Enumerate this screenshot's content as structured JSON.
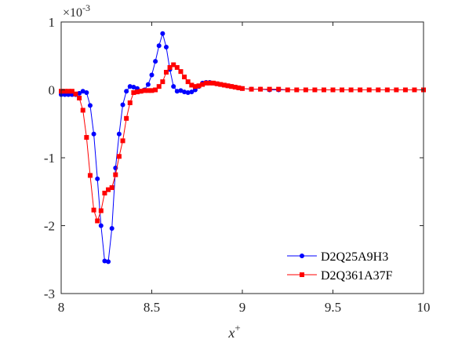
{
  "chart_data": {
    "type": "line",
    "xlabel": "x",
    "xlabel_superscript": "+",
    "ylabel": "",
    "y_exponent_label": "×10",
    "y_exponent_power": "-3",
    "xlim": [
      8,
      10
    ],
    "ylim": [
      -3,
      1
    ],
    "x_ticks": [
      8,
      8.5,
      9,
      9.5,
      10
    ],
    "x_tick_labels": [
      "8",
      "8.5",
      "9",
      "9.5",
      "10"
    ],
    "y_ticks": [
      -3,
      -2,
      -1,
      0,
      1
    ],
    "y_tick_labels": [
      "-3",
      "-2",
      "-1",
      "0",
      "1"
    ],
    "grid": false,
    "legend_position": "bottom-right",
    "series": [
      {
        "name": "D2Q25A9H3",
        "color": "#0000ff",
        "marker": "circle",
        "x": [
          8.0,
          8.02,
          8.04,
          8.06,
          8.08,
          8.1,
          8.12,
          8.14,
          8.16,
          8.18,
          8.2,
          8.22,
          8.24,
          8.26,
          8.28,
          8.3,
          8.32,
          8.34,
          8.36,
          8.38,
          8.4,
          8.42,
          8.44,
          8.46,
          8.48,
          8.5,
          8.52,
          8.54,
          8.56,
          8.58,
          8.6,
          8.62,
          8.64,
          8.66,
          8.68,
          8.7,
          8.72,
          8.74,
          8.76,
          8.78,
          8.8,
          8.82,
          8.84,
          8.86,
          8.88,
          8.9,
          8.92,
          8.94,
          8.96,
          8.98,
          9.0,
          9.05,
          9.1,
          9.15,
          9.2,
          9.25,
          9.3,
          9.35,
          9.4,
          9.45,
          9.5,
          9.55,
          9.6,
          9.65,
          9.7,
          9.75,
          9.8,
          9.85,
          9.9,
          9.95,
          10.0
        ],
        "y": [
          -0.07,
          -0.07,
          -0.07,
          -0.07,
          -0.07,
          -0.05,
          -0.02,
          -0.04,
          -0.23,
          -0.65,
          -1.31,
          -2.0,
          -2.52,
          -2.53,
          -2.04,
          -1.15,
          -0.65,
          -0.22,
          -0.02,
          0.05,
          0.04,
          0.02,
          -0.02,
          0.0,
          0.08,
          0.22,
          0.42,
          0.65,
          0.83,
          0.63,
          0.3,
          0.05,
          -0.02,
          -0.01,
          -0.03,
          -0.04,
          -0.03,
          0.0,
          0.05,
          0.1,
          0.11,
          0.11,
          0.1,
          0.09,
          0.08,
          0.07,
          0.06,
          0.05,
          0.04,
          0.03,
          0.02,
          0.01,
          0.01,
          0.0,
          0.0,
          0.0,
          0.0,
          0.0,
          0.0,
          0.0,
          0.0,
          0.0,
          0.0,
          0.0,
          0.0,
          0.0,
          0.0,
          0.0,
          0.0,
          0.0,
          0.0
        ]
      },
      {
        "name": "D2Q361A37F",
        "color": "#ff0000",
        "marker": "square",
        "x": [
          8.0,
          8.02,
          8.04,
          8.06,
          8.08,
          8.1,
          8.12,
          8.14,
          8.16,
          8.18,
          8.2,
          8.22,
          8.24,
          8.26,
          8.28,
          8.3,
          8.32,
          8.34,
          8.36,
          8.38,
          8.4,
          8.42,
          8.44,
          8.46,
          8.48,
          8.5,
          8.52,
          8.54,
          8.56,
          8.58,
          8.6,
          8.62,
          8.64,
          8.66,
          8.68,
          8.7,
          8.72,
          8.74,
          8.76,
          8.78,
          8.8,
          8.82,
          8.84,
          8.86,
          8.88,
          8.9,
          8.92,
          8.94,
          8.96,
          8.98,
          9.0,
          9.05,
          9.1,
          9.15,
          9.2,
          9.25,
          9.3,
          9.35,
          9.4,
          9.45,
          9.5,
          9.55,
          9.6,
          9.65,
          9.7,
          9.75,
          9.8,
          9.85,
          9.9,
          9.95,
          10.0
        ],
        "y": [
          -0.02,
          -0.02,
          -0.02,
          -0.02,
          -0.06,
          -0.12,
          -0.3,
          -0.7,
          -1.26,
          -1.77,
          -1.93,
          -1.78,
          -1.52,
          -1.47,
          -1.44,
          -1.25,
          -0.98,
          -0.75,
          -0.42,
          -0.19,
          -0.04,
          -0.03,
          -0.02,
          -0.01,
          -0.01,
          -0.01,
          0.0,
          0.05,
          0.12,
          0.26,
          0.33,
          0.37,
          0.33,
          0.27,
          0.19,
          0.12,
          0.07,
          0.05,
          0.06,
          0.08,
          0.1,
          0.1,
          0.1,
          0.09,
          0.08,
          0.07,
          0.06,
          0.05,
          0.04,
          0.03,
          0.02,
          0.01,
          0.01,
          0.01,
          0.01,
          0.0,
          0.0,
          0.0,
          0.0,
          0.0,
          0.0,
          0.0,
          0.0,
          0.0,
          0.0,
          0.0,
          0.0,
          0.0,
          0.0,
          0.0,
          0.0
        ]
      }
    ]
  }
}
